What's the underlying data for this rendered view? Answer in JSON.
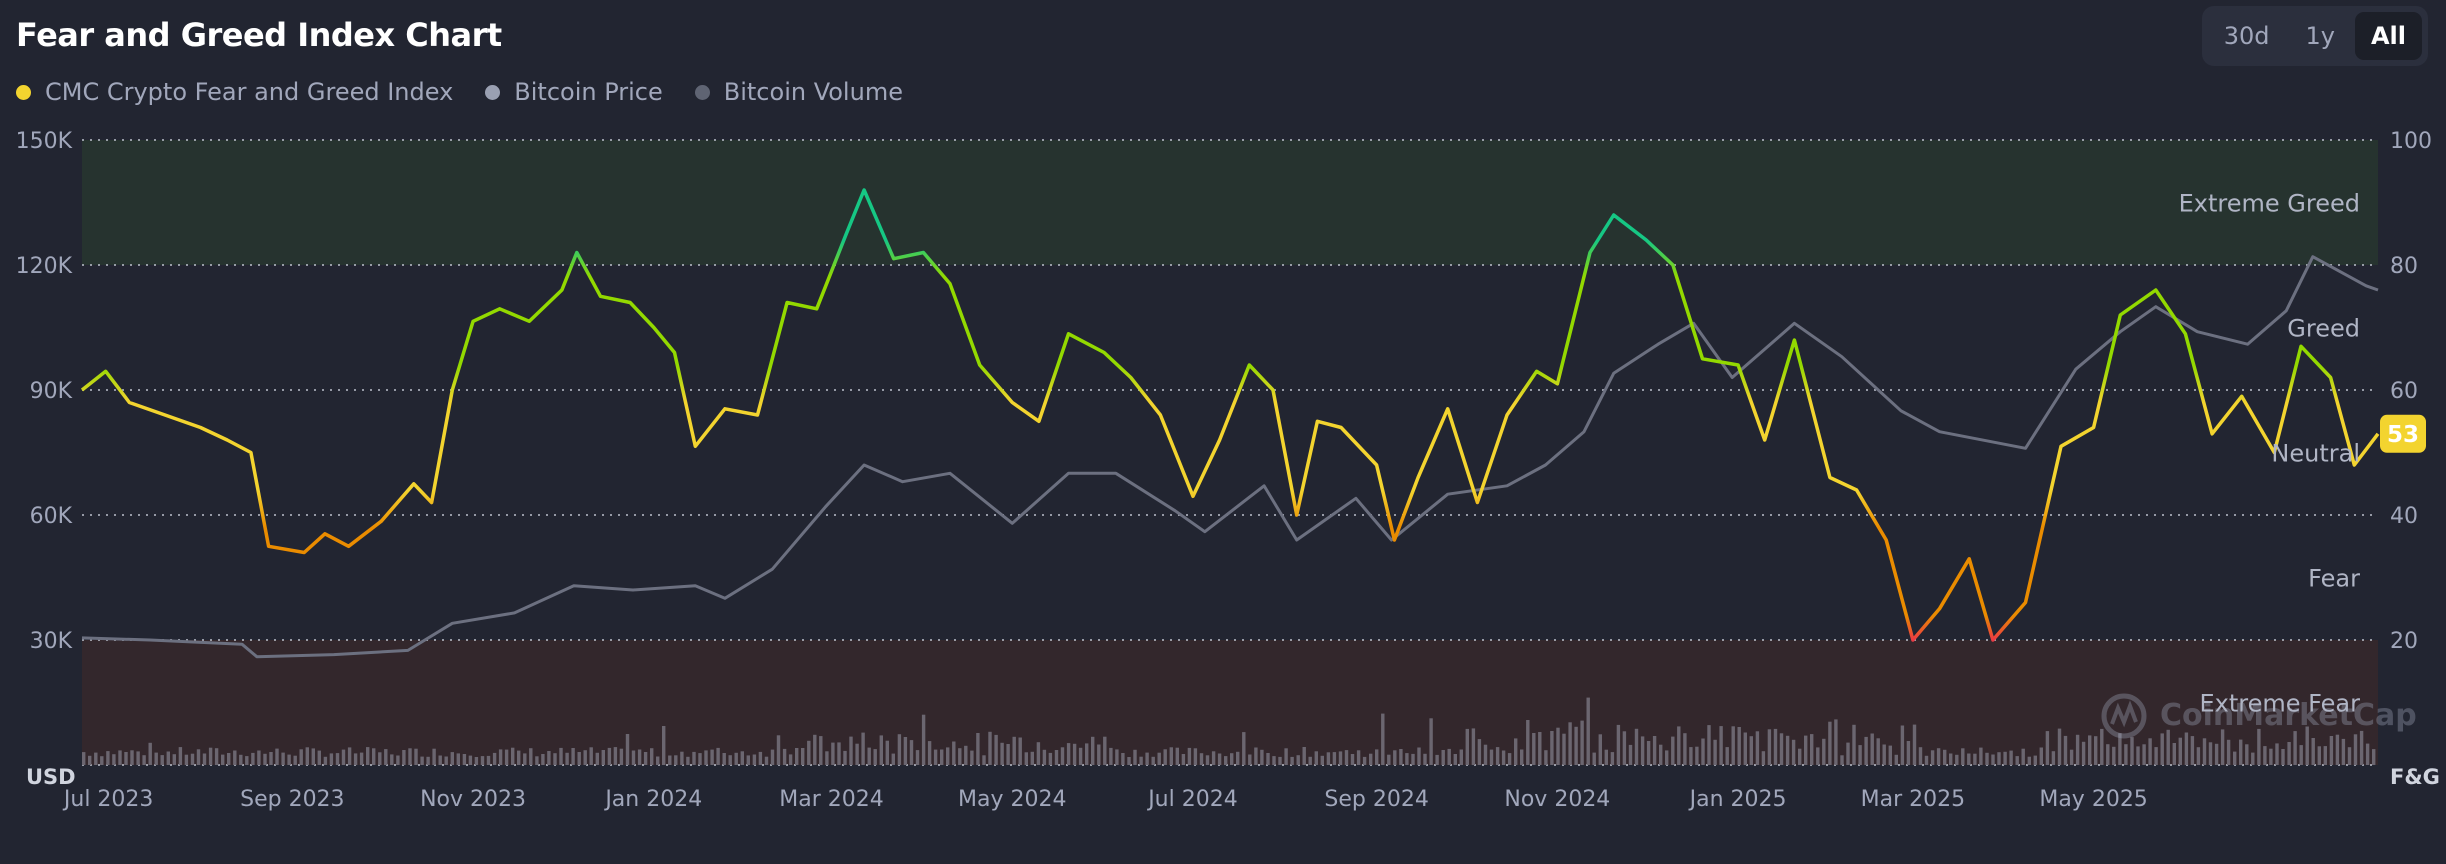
{
  "title": "Fear and Greed Index Chart",
  "range_buttons": [
    {
      "label": "30d",
      "active": false
    },
    {
      "label": "1y",
      "active": false
    },
    {
      "label": "All",
      "active": true
    }
  ],
  "legend": [
    {
      "label": "CMC Crypto Fear and Greed Index",
      "color": "#f3d42f"
    },
    {
      "label": "Bitcoin Price",
      "color": "#9aa0b2"
    },
    {
      "label": "Bitcoin Volume",
      "color": "#5f6473"
    }
  ],
  "current_value_badge": "53",
  "watermark": "CoinMarketCap",
  "chart_data": {
    "type": "line",
    "x_range": [
      "2023-06-22",
      "2025-08-05"
    ],
    "left_axis": {
      "unit": "USD",
      "ticks": [
        "150K",
        "120K",
        "90K",
        "60K",
        "30K"
      ],
      "tick_values": [
        150000,
        120000,
        90000,
        60000,
        30000
      ],
      "range": [
        0,
        150000
      ]
    },
    "right_axis": {
      "unit": "F&G",
      "ticks": [
        "100",
        "80",
        "60",
        "40",
        "20"
      ],
      "tick_values": [
        100,
        80,
        60,
        40,
        20
      ],
      "range": [
        0,
        100
      ]
    },
    "x_ticks": [
      {
        "label": "Jul 2023",
        "date": "2023-07-01"
      },
      {
        "label": "Sep 2023",
        "date": "2023-09-01"
      },
      {
        "label": "Nov 2023",
        "date": "2023-11-01"
      },
      {
        "label": "Jan 2024",
        "date": "2024-01-01"
      },
      {
        "label": "Mar 2024",
        "date": "2024-03-01"
      },
      {
        "label": "May 2024",
        "date": "2024-05-01"
      },
      {
        "label": "Jul 2024",
        "date": "2024-07-01"
      },
      {
        "label": "Sep 2024",
        "date": "2024-09-01"
      },
      {
        "label": "Nov 2024",
        "date": "2024-11-01"
      },
      {
        "label": "Jan 2025",
        "date": "2025-01-01"
      },
      {
        "label": "Mar 2025",
        "date": "2025-03-01"
      },
      {
        "label": "May 2025",
        "date": "2025-05-01"
      }
    ],
    "zones": [
      {
        "label": "Extreme Greed",
        "from": 80,
        "to": 100,
        "color": "#26332f"
      },
      {
        "label": "Greed",
        "from": 60,
        "to": 80
      },
      {
        "label": "Neutral",
        "from": 40,
        "to": 60
      },
      {
        "label": "Fear",
        "from": 20,
        "to": 40
      },
      {
        "label": "Extreme Fear",
        "from": 0,
        "to": 20,
        "color": "#33272c"
      }
    ],
    "series": [
      {
        "name": "CMC Crypto Fear and Greed Index",
        "axis": "right",
        "points": [
          [
            "2023-06-22",
            60
          ],
          [
            "2023-06-30",
            63
          ],
          [
            "2023-07-08",
            58
          ],
          [
            "2023-07-20",
            56
          ],
          [
            "2023-08-01",
            54
          ],
          [
            "2023-08-10",
            52
          ],
          [
            "2023-08-18",
            50
          ],
          [
            "2023-08-24",
            35
          ],
          [
            "2023-09-05",
            34
          ],
          [
            "2023-09-12",
            37
          ],
          [
            "2023-09-20",
            35
          ],
          [
            "2023-10-01",
            39
          ],
          [
            "2023-10-12",
            45
          ],
          [
            "2023-10-18",
            42
          ],
          [
            "2023-10-25",
            60
          ],
          [
            "2023-11-01",
            71
          ],
          [
            "2023-11-10",
            73
          ],
          [
            "2023-11-20",
            71
          ],
          [
            "2023-12-01",
            76
          ],
          [
            "2023-12-06",
            82
          ],
          [
            "2023-12-14",
            75
          ],
          [
            "2023-12-24",
            74
          ],
          [
            "2024-01-01",
            70
          ],
          [
            "2024-01-08",
            66
          ],
          [
            "2024-01-15",
            51
          ],
          [
            "2024-01-25",
            57
          ],
          [
            "2024-02-05",
            56
          ],
          [
            "2024-02-15",
            74
          ],
          [
            "2024-02-25",
            73
          ],
          [
            "2024-03-06",
            85
          ],
          [
            "2024-03-12",
            92
          ],
          [
            "2024-03-22",
            81
          ],
          [
            "2024-04-01",
            82
          ],
          [
            "2024-04-10",
            77
          ],
          [
            "2024-04-20",
            64
          ],
          [
            "2024-05-01",
            58
          ],
          [
            "2024-05-10",
            55
          ],
          [
            "2024-05-20",
            69
          ],
          [
            "2024-06-01",
            66
          ],
          [
            "2024-06-10",
            62
          ],
          [
            "2024-06-20",
            56
          ],
          [
            "2024-07-01",
            43
          ],
          [
            "2024-07-10",
            52
          ],
          [
            "2024-07-20",
            64
          ],
          [
            "2024-07-28",
            60
          ],
          [
            "2024-08-05",
            40
          ],
          [
            "2024-08-12",
            55
          ],
          [
            "2024-08-20",
            54
          ],
          [
            "2024-09-01",
            48
          ],
          [
            "2024-09-07",
            36
          ],
          [
            "2024-09-15",
            46
          ],
          [
            "2024-09-25",
            57
          ],
          [
            "2024-10-05",
            42
          ],
          [
            "2024-10-15",
            56
          ],
          [
            "2024-10-25",
            63
          ],
          [
            "2024-11-01",
            61
          ],
          [
            "2024-11-12",
            82
          ],
          [
            "2024-11-20",
            88
          ],
          [
            "2024-12-01",
            84
          ],
          [
            "2024-12-10",
            80
          ],
          [
            "2024-12-20",
            65
          ],
          [
            "2025-01-01",
            64
          ],
          [
            "2025-01-10",
            52
          ],
          [
            "2025-01-20",
            68
          ],
          [
            "2025-02-01",
            46
          ],
          [
            "2025-02-10",
            44
          ],
          [
            "2025-02-20",
            36
          ],
          [
            "2025-03-01",
            20
          ],
          [
            "2025-03-10",
            25
          ],
          [
            "2025-03-20",
            33
          ],
          [
            "2025-03-28",
            20
          ],
          [
            "2025-04-08",
            26
          ],
          [
            "2025-04-20",
            51
          ],
          [
            "2025-05-01",
            54
          ],
          [
            "2025-05-10",
            72
          ],
          [
            "2025-05-22",
            76
          ],
          [
            "2025-06-01",
            69
          ],
          [
            "2025-06-10",
            53
          ],
          [
            "2025-06-20",
            59
          ],
          [
            "2025-07-01",
            50
          ],
          [
            "2025-07-10",
            67
          ],
          [
            "2025-07-20",
            62
          ],
          [
            "2025-07-28",
            48
          ],
          [
            "2025-08-05",
            53
          ]
        ]
      },
      {
        "name": "Bitcoin Price",
        "axis": "left",
        "points": [
          [
            "2023-06-22",
            30500
          ],
          [
            "2023-07-15",
            30000
          ],
          [
            "2023-08-15",
            29000
          ],
          [
            "2023-08-20",
            26000
          ],
          [
            "2023-09-15",
            26500
          ],
          [
            "2023-10-10",
            27500
          ],
          [
            "2023-10-25",
            34000
          ],
          [
            "2023-11-15",
            36500
          ],
          [
            "2023-12-05",
            43000
          ],
          [
            "2023-12-25",
            42000
          ],
          [
            "2024-01-15",
            43000
          ],
          [
            "2024-01-25",
            40000
          ],
          [
            "2024-02-10",
            47000
          ],
          [
            "2024-02-28",
            62000
          ],
          [
            "2024-03-12",
            72000
          ],
          [
            "2024-03-25",
            68000
          ],
          [
            "2024-04-10",
            70000
          ],
          [
            "2024-05-01",
            58000
          ],
          [
            "2024-05-20",
            70000
          ],
          [
            "2024-06-05",
            70000
          ],
          [
            "2024-06-25",
            61000
          ],
          [
            "2024-07-05",
            56000
          ],
          [
            "2024-07-25",
            67000
          ],
          [
            "2024-08-05",
            54000
          ],
          [
            "2024-08-25",
            64000
          ],
          [
            "2024-09-06",
            54000
          ],
          [
            "2024-09-25",
            65000
          ],
          [
            "2024-10-15",
            67000
          ],
          [
            "2024-10-28",
            72000
          ],
          [
            "2024-11-10",
            80000
          ],
          [
            "2024-11-20",
            94000
          ],
          [
            "2024-12-05",
            101000
          ],
          [
            "2024-12-17",
            106000
          ],
          [
            "2024-12-30",
            93000
          ],
          [
            "2025-01-20",
            106000
          ],
          [
            "2025-02-05",
            98000
          ],
          [
            "2025-02-25",
            85000
          ],
          [
            "2025-03-10",
            80000
          ],
          [
            "2025-04-08",
            76000
          ],
          [
            "2025-04-25",
            95000
          ],
          [
            "2025-05-10",
            104000
          ],
          [
            "2025-05-22",
            110000
          ],
          [
            "2025-06-05",
            104000
          ],
          [
            "2025-06-22",
            101000
          ],
          [
            "2025-07-05",
            109000
          ],
          [
            "2025-07-14",
            122000
          ],
          [
            "2025-08-01",
            115000
          ],
          [
            "2025-08-05",
            114000
          ]
        ]
      },
      {
        "name": "Bitcoin Volume",
        "axis": "left"
      }
    ]
  }
}
